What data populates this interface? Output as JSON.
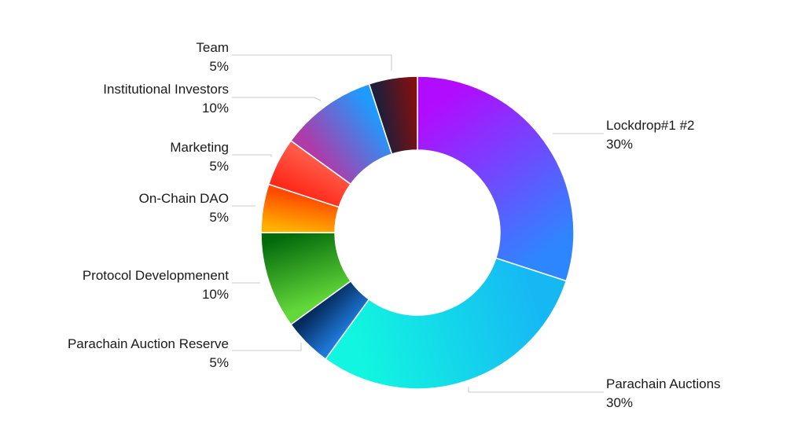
{
  "chart_data": {
    "type": "pie",
    "variant": "donut",
    "title": "",
    "legend": "none",
    "slices": [
      {
        "label": "Lockdrop#1 #2",
        "percent_label": "30%",
        "value": 30,
        "colors": [
          "#b10cff",
          "#2e86ff"
        ]
      },
      {
        "label": "Parachain Auctions",
        "percent_label": "30%",
        "value": 30,
        "colors": [
          "#16b8f4",
          "#12f5e0"
        ]
      },
      {
        "label": "Parachain Auction Reserve",
        "percent_label": "5%",
        "value": 5,
        "colors": [
          "#1e78d8",
          "#052a5c"
        ]
      },
      {
        "label": "Protocol Developmenent",
        "percent_label": "10%",
        "value": 10,
        "colors": [
          "#63d83a",
          "#046b0c"
        ]
      },
      {
        "label": "On-Chain DAO",
        "percent_label": "5%",
        "value": 5,
        "colors": [
          "#ffb300",
          "#ff4a00"
        ]
      },
      {
        "label": "Marketing",
        "percent_label": "5%",
        "value": 5,
        "colors": [
          "#ff2a1a",
          "#ff5a48"
        ]
      },
      {
        "label": "Institutional Investors",
        "percent_label": "10%",
        "value": 10,
        "colors": [
          "#b03aa8",
          "#1e9bff"
        ]
      },
      {
        "label": "Team",
        "percent_label": "5%",
        "value": 5,
        "colors": [
          "#1e1e3a",
          "#801010"
        ]
      }
    ]
  }
}
